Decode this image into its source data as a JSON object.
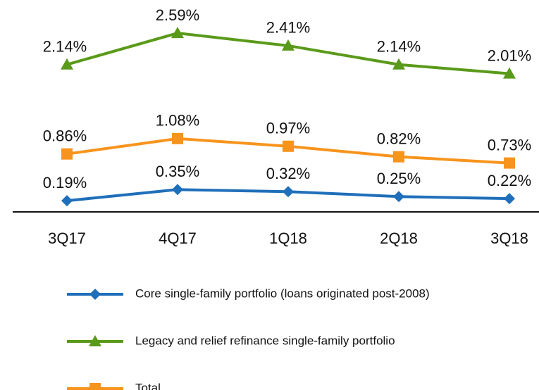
{
  "chart_data": {
    "type": "line",
    "categories": [
      "3Q17",
      "4Q17",
      "1Q18",
      "2Q18",
      "3Q18"
    ],
    "ylim": [
      0,
      3
    ],
    "series": [
      {
        "name": "Core single-family portfolio (loans originated post-2008)",
        "color": "#1f6fba",
        "marker": "diamond",
        "values": [
          0.19,
          0.35,
          0.32,
          0.25,
          0.22
        ],
        "value_labels": [
          "0.19%",
          "0.35%",
          "0.32%",
          "0.25%",
          "0.22%"
        ]
      },
      {
        "name": "Legacy and relief refinance single-family portfolio",
        "color": "#5a9a1a",
        "marker": "triangle",
        "values": [
          2.14,
          2.59,
          2.41,
          2.14,
          2.01
        ],
        "value_labels": [
          "2.14%",
          "2.59%",
          "2.41%",
          "2.14%",
          "2.01%"
        ]
      },
      {
        "name": "Total",
        "color": "#f7941d",
        "marker": "square",
        "values": [
          0.86,
          1.08,
          0.97,
          0.82,
          0.73
        ],
        "value_labels": [
          "0.86%",
          "1.08%",
          "0.97%",
          "0.82%",
          "0.73%"
        ]
      }
    ]
  }
}
